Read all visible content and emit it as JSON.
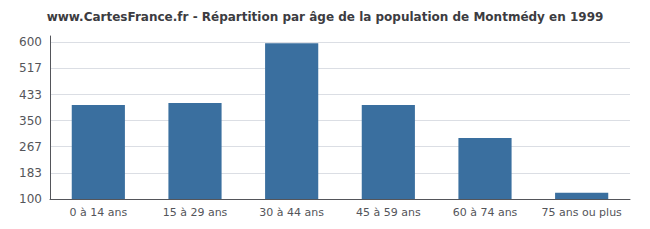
{
  "chart_data": {
    "type": "bar",
    "title": "www.CartesFrance.fr - Répartition par âge de la population de Montmédy en 1999",
    "categories": [
      "0 à 14 ans",
      "15 à 29 ans",
      "30 à 44 ans",
      "45 à 59 ans",
      "60 à 74 ans",
      "75 ans ou plus"
    ],
    "values": [
      400,
      406,
      597,
      400,
      295,
      120
    ],
    "color": "#3a6f9f",
    "ylim": [
      100,
      620
    ],
    "yticks": [
      100,
      183,
      267,
      350,
      433,
      517,
      600
    ],
    "grid": true
  }
}
